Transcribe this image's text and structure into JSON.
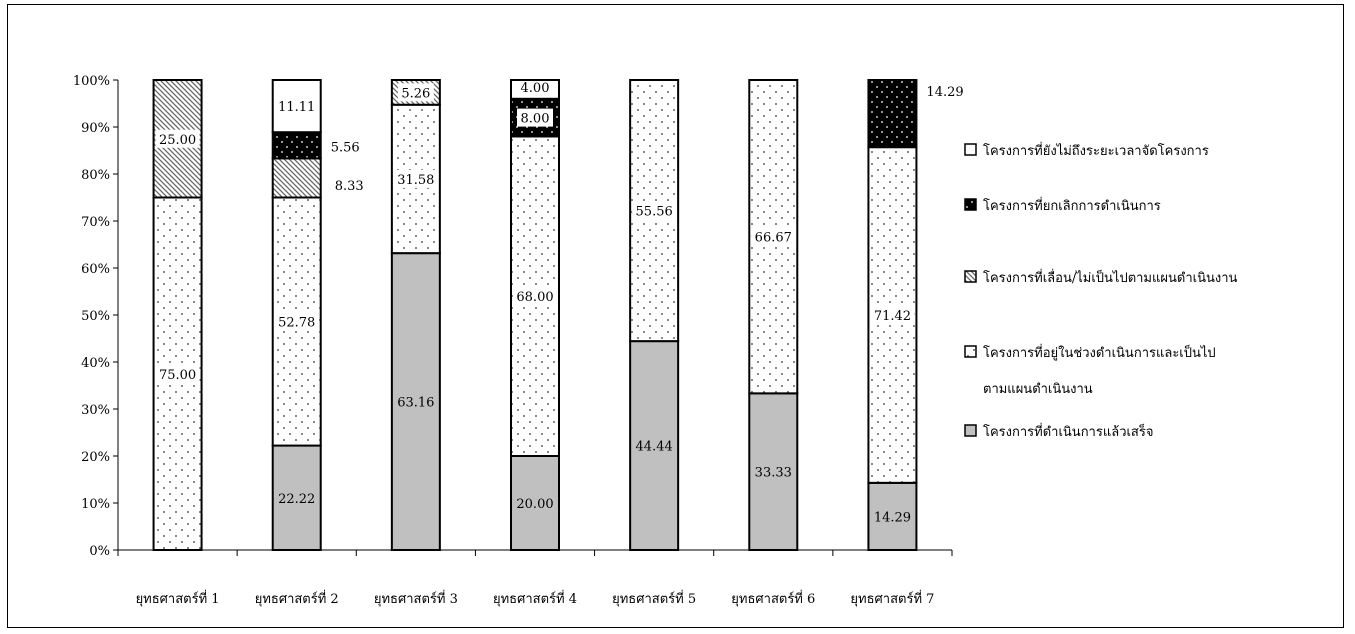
{
  "chart_data": {
    "type": "bar",
    "stacked": true,
    "percent": true,
    "categories": [
      "ยุทธศาสตร์ที่ 1",
      "ยุทธศาสตร์ที่ 2",
      "ยุทธศาสตร์ที่ 3",
      "ยุทธศาสตร์ที่ 4",
      "ยุทธศาสตร์ที่ 5",
      "ยุทธศาสตร์ที่ 6",
      "ยุทธศาสตร์ที่ 7"
    ],
    "ylim": [
      0,
      100
    ],
    "yticks": [
      "0%",
      "10%",
      "20%",
      "30%",
      "40%",
      "50%",
      "60%",
      "70%",
      "80%",
      "90%",
      "100%"
    ],
    "grid": false,
    "legend_position": "right",
    "series": [
      {
        "name": "โครงการที่ดำเนินการแล้วเสร็จ",
        "pattern": "gray",
        "color": "#c0c0c0",
        "values": [
          0,
          22.22,
          63.16,
          20.0,
          44.44,
          33.33,
          14.29
        ],
        "labels": [
          "",
          "22.22",
          "63.16",
          "20.00",
          "44.44",
          "33.33",
          "14.29"
        ]
      },
      {
        "name": "โครงการที่อยู่ในช่วงดำเนินการและเป็นไปตามแผนดำเนินงาน",
        "name_lines": [
          "โครงการที่อยู่ในช่วงดำเนินการและเป็นไป",
          "ตามแผนดำเนินงาน"
        ],
        "pattern": "dots",
        "color": "#ffffff",
        "values": [
          75.0,
          52.78,
          31.58,
          68.0,
          55.56,
          66.67,
          71.42
        ],
        "labels": [
          "75.00",
          "52.78",
          "31.58",
          "68.00",
          "55.56",
          "66.67",
          "71.42"
        ]
      },
      {
        "name": "โครงการที่เลื่อน/ไม่เป็นไปตามแผนดำเนินงาน",
        "pattern": "hatch",
        "color": "#ffffff",
        "values": [
          25.0,
          8.33,
          5.26,
          0,
          0,
          0,
          0
        ],
        "labels": [
          "25.00",
          "8.33",
          "5.26",
          "",
          "",
          "",
          ""
        ]
      },
      {
        "name": "โครงการที่ยกเลิกการดำเนินการ",
        "pattern": "black",
        "color": "#000000",
        "values": [
          0,
          5.56,
          0,
          8.0,
          0,
          0,
          14.29
        ],
        "labels": [
          "",
          "5.56",
          "",
          "8.00",
          "",
          "",
          "14.29"
        ]
      },
      {
        "name": "โครงการที่ยังไม่ถึงระยะเวลาจัดโครงการ",
        "pattern": "white",
        "color": "#ffffff",
        "values": [
          0,
          11.11,
          0,
          4.0,
          0,
          0,
          0
        ],
        "labels": [
          "",
          "11.11",
          "",
          "4.00",
          "",
          "",
          ""
        ]
      }
    ],
    "legend_order": [
      4,
      3,
      2,
      1,
      0
    ]
  }
}
